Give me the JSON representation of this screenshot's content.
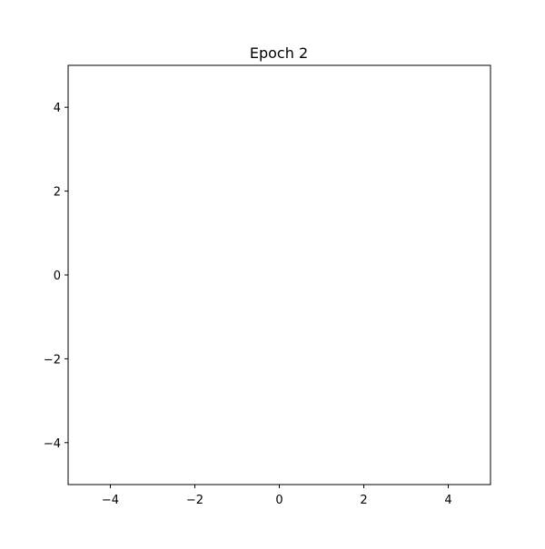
{
  "chart_data": {
    "type": "scatter",
    "title": "Epoch 2",
    "xlabel": "",
    "ylabel": "",
    "xlim": [
      -5,
      5
    ],
    "ylim": [
      -5,
      5
    ],
    "x_ticks": [
      -4,
      -2,
      0,
      2,
      4
    ],
    "y_ticks": [
      -4,
      -2,
      0,
      2,
      4
    ],
    "x_tick_labels": [
      "−4",
      "−2",
      "0",
      "2",
      "4"
    ],
    "y_tick_labels": [
      "−4",
      "−2",
      "0",
      "2",
      "4"
    ],
    "grid": false,
    "series": [],
    "colors": {
      "axes": "#000000",
      "background": "#ffffff"
    }
  }
}
